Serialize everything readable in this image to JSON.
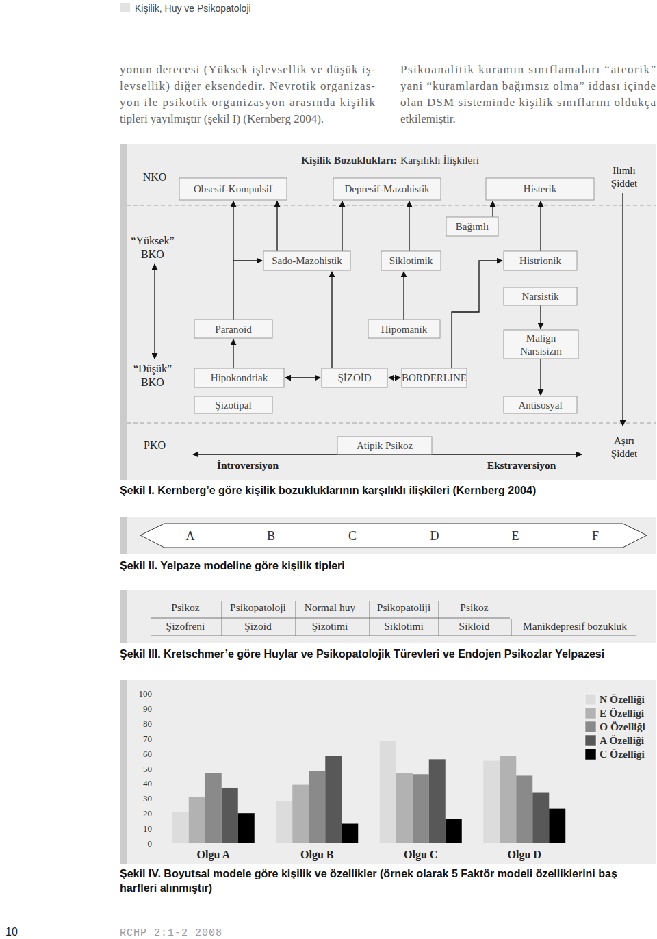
{
  "header": {
    "running_title": "Kişilik, Huy ve Psikopatoloji"
  },
  "body": {
    "left_column": [
      "yonun derecesi (Yüksek işlevsellik ve düşük iş-",
      "levsellik) diğer eksendedir. Nevrotik organizas-",
      "yon ile psikotik organizasyon arasında kişilik",
      "tipleri yayılmıştır (şekil I) (Kernberg 2004)."
    ],
    "right_column": [
      "Psikoanalitik kuramın sınıflamaları “ateorik”",
      "yani “kuramlardan bağımsız olma” iddası içinde",
      "olan DSM sisteminde kişilik sınıflarını oldukça",
      "etkilemiştir."
    ]
  },
  "figure_1": {
    "title": {
      "bold": "Kişilik Bozuklukları:",
      "rest": "Karşılıklı İlişkileri"
    },
    "levels": {
      "nko": "NKO",
      "high_bko": [
        "“Yüksek”",
        "BKO"
      ],
      "low_bko": [
        "“Düşük”",
        "BKO"
      ],
      "pko": "PKO",
      "mild": [
        "Ilımlı",
        "Şiddet"
      ],
      "severe": [
        "Aşırı",
        "Şiddet"
      ],
      "introversion": "İntroversiyon",
      "extraversion": "Ekstraversiyon"
    },
    "nodes": [
      "Obsesif-Kompulsif",
      "Depresif-Mazohistik",
      "Histerik",
      "Bağımlı",
      "Sado-Mazohistik",
      "Siklotimik",
      "Histrionik",
      "Narsistik",
      "Paranoid",
      "Hipomanik",
      [
        "Malign",
        "Narsisizm"
      ],
      "Hipokondriak",
      "ŞİZOİD",
      "BORDERLINE",
      "Şizotipal",
      "Antisosyal",
      "Atipik Psikoz"
    ],
    "caption": "Şekil I. Kernberg’e göre kişilik bozukluklarının karşılıklı ilişkileri (Kernberg 2004)"
  },
  "figure_2": {
    "types": [
      "A",
      "B",
      "C",
      "D",
      "E",
      "F"
    ],
    "caption": "Şekil II. Yelpaze modeline göre kişilik tipleri"
  },
  "figure_3": {
    "rows": [
      [
        "Psikoz",
        "Psikopatoloji",
        "Normal huy",
        "Psikopatoliji",
        "Psikoz"
      ],
      [
        "Şizofreni",
        "Şizoid",
        "Şizotimi",
        "Siklotimi",
        "Sikloid",
        "Manikdepresif bozukluk"
      ]
    ],
    "caption": "Şekil III. Kretschmer’e göre Huylar ve Psikopatolojik Türevleri ve Endojen Psikozlar Yelpazesi"
  },
  "chart_data": {
    "type": "bar",
    "title": "Şekil IV. Boyutsal modele göre kişilik ve özellikler (örnek olarak 5 Faktör modeli özelliklerini baş harfleri alınmıştır)",
    "categories": [
      "Olgu A",
      "Olgu B",
      "Olgu C",
      "Olgu D"
    ],
    "series": [
      {
        "name": "N Özelliği",
        "color": "#dcdcdc",
        "values": [
          21,
          28,
          68,
          55
        ]
      },
      {
        "name": "E Özelliği",
        "color": "#b2b2b2",
        "values": [
          31,
          39,
          47,
          58
        ]
      },
      {
        "name": "O Özelliği",
        "color": "#8a8a8a",
        "values": [
          47,
          48,
          46,
          45
        ]
      },
      {
        "name": "A Özelliği",
        "color": "#585858",
        "values": [
          37,
          58,
          56,
          34
        ]
      },
      {
        "name": "C Özelliği",
        "color": "#000000",
        "values": [
          20,
          13,
          16,
          23
        ]
      }
    ],
    "ylim": [
      0,
      100
    ],
    "yticks": [
      0,
      10,
      20,
      30,
      40,
      50,
      60,
      70,
      80,
      90,
      100
    ],
    "grid": false,
    "legend": "right"
  },
  "footer": {
    "page_number": "10",
    "journal": "RCHP 2:1-2 2008"
  }
}
